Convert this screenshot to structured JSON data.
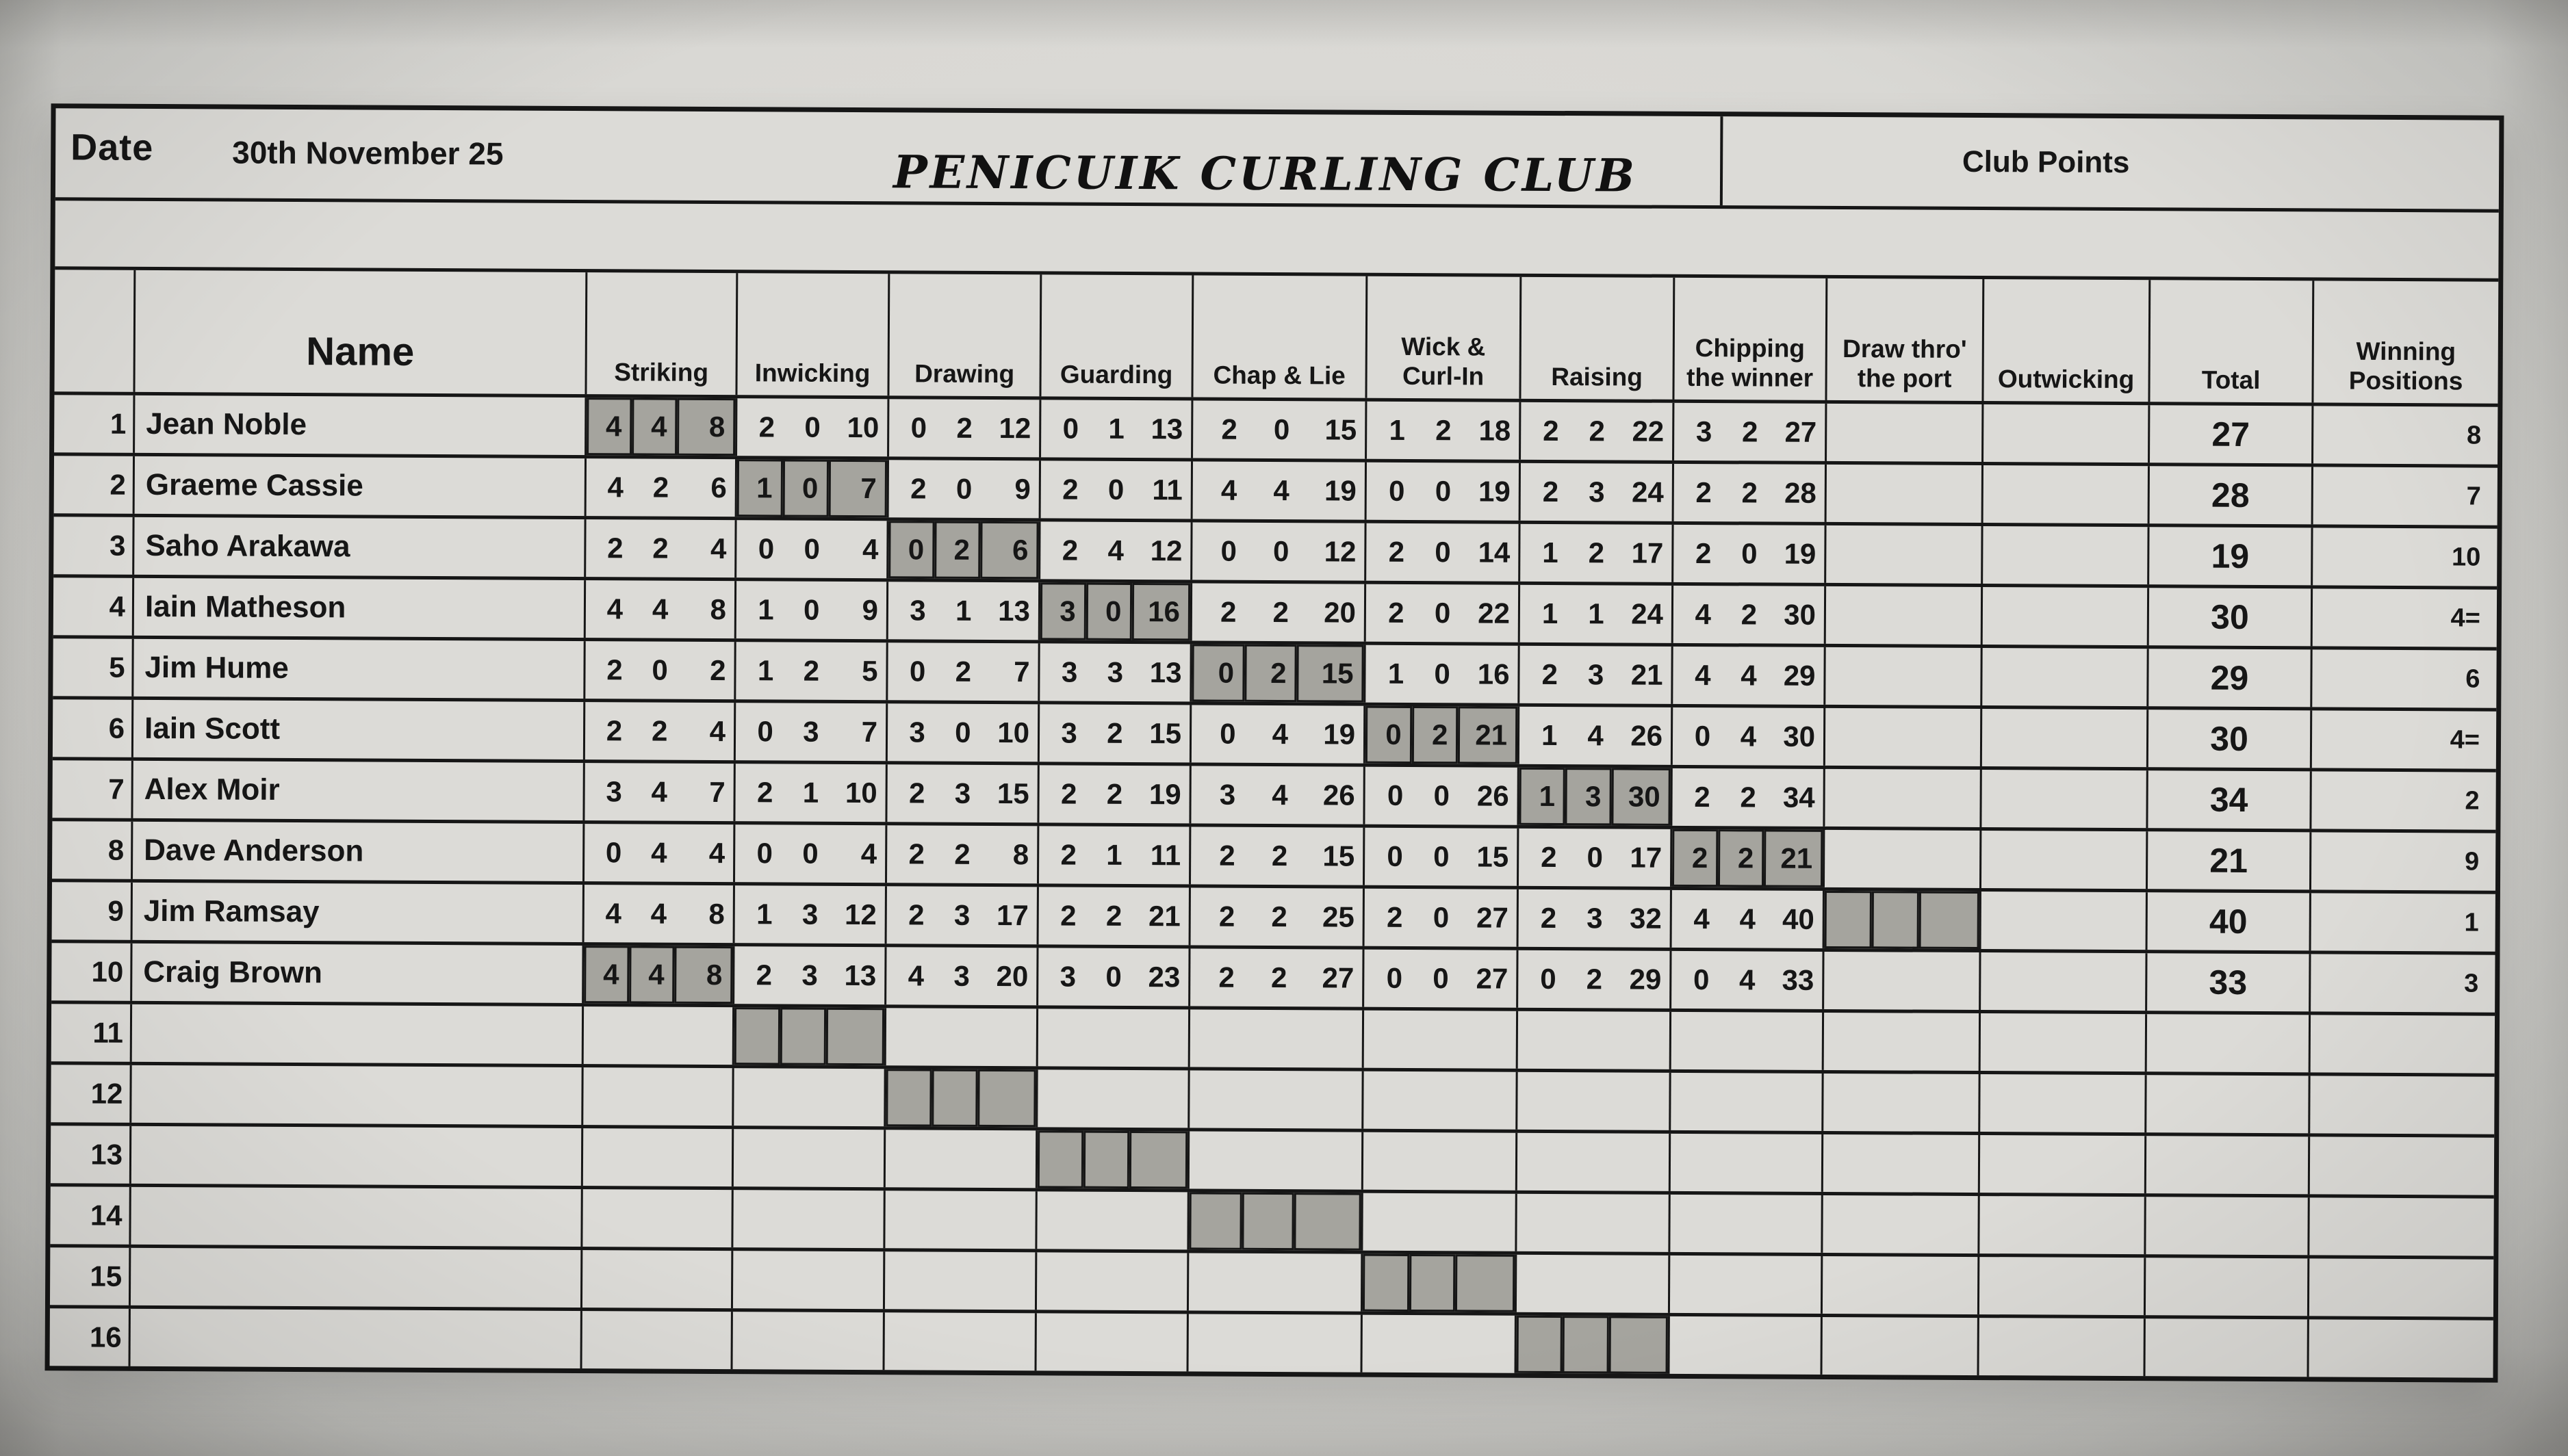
{
  "header": {
    "date_label": "Date",
    "date_value": "30th November 25",
    "title": "PENICUIK CURLING CLUB",
    "club_points": "Club Points"
  },
  "columns": {
    "name": "Name",
    "skills": [
      [
        "Striking"
      ],
      [
        "Inwicking"
      ],
      [
        "Drawing"
      ],
      [
        "Guarding"
      ],
      [
        "Chap & Lie"
      ],
      [
        "Wick &",
        "Curl-In"
      ],
      [
        "Raising"
      ],
      [
        "Chipping",
        "the winner"
      ],
      [
        "Draw thro'",
        "the port"
      ],
      [
        "Outwicking"
      ]
    ],
    "total": [
      "Total"
    ],
    "winning": [
      "Winning",
      "Positions"
    ]
  },
  "colors": {
    "paper": "#dcdbd7",
    "ink": "#161616",
    "shaded_cell": "#a5a49e",
    "photo_background": "#d9d8d4"
  },
  "rows": [
    {
      "num": "1",
      "name": "Jean Noble",
      "shaded_skill": 0,
      "total": "27",
      "position": "8",
      "scores": [
        [
          "4",
          "4",
          "8"
        ],
        [
          "2",
          "0",
          "10"
        ],
        [
          "0",
          "2",
          "12"
        ],
        [
          "0",
          "1",
          "13"
        ],
        [
          "2",
          "0",
          "15"
        ],
        [
          "1",
          "2",
          "18"
        ],
        [
          "2",
          "2",
          "22"
        ],
        [
          "3",
          "2",
          "27"
        ],
        [
          "",
          "",
          ""
        ],
        [
          "",
          "",
          ""
        ]
      ]
    },
    {
      "num": "2",
      "name": "Graeme Cassie",
      "shaded_skill": 1,
      "total": "28",
      "position": "7",
      "scores": [
        [
          "4",
          "2",
          "6"
        ],
        [
          "1",
          "0",
          "7"
        ],
        [
          "2",
          "0",
          "9"
        ],
        [
          "2",
          "0",
          "11"
        ],
        [
          "4",
          "4",
          "19"
        ],
        [
          "0",
          "0",
          "19"
        ],
        [
          "2",
          "3",
          "24"
        ],
        [
          "2",
          "2",
          "28"
        ],
        [
          "",
          "",
          ""
        ],
        [
          "",
          "",
          ""
        ]
      ]
    },
    {
      "num": "3",
      "name": "Saho Arakawa",
      "shaded_skill": 2,
      "total": "19",
      "position": "10",
      "scores": [
        [
          "2",
          "2",
          "4"
        ],
        [
          "0",
          "0",
          "4"
        ],
        [
          "0",
          "2",
          "6"
        ],
        [
          "2",
          "4",
          "12"
        ],
        [
          "0",
          "0",
          "12"
        ],
        [
          "2",
          "0",
          "14"
        ],
        [
          "1",
          "2",
          "17"
        ],
        [
          "2",
          "0",
          "19"
        ],
        [
          "",
          "",
          ""
        ],
        [
          "",
          "",
          ""
        ]
      ]
    },
    {
      "num": "4",
      "name": "Iain Matheson",
      "shaded_skill": 3,
      "total": "30",
      "position": "4=",
      "scores": [
        [
          "4",
          "4",
          "8"
        ],
        [
          "1",
          "0",
          "9"
        ],
        [
          "3",
          "1",
          "13"
        ],
        [
          "3",
          "0",
          "16"
        ],
        [
          "2",
          "2",
          "20"
        ],
        [
          "2",
          "0",
          "22"
        ],
        [
          "1",
          "1",
          "24"
        ],
        [
          "4",
          "2",
          "30"
        ],
        [
          "",
          "",
          ""
        ],
        [
          "",
          "",
          ""
        ]
      ]
    },
    {
      "num": "5",
      "name": "Jim Hume",
      "shaded_skill": 4,
      "total": "29",
      "position": "6",
      "scores": [
        [
          "2",
          "0",
          "2"
        ],
        [
          "1",
          "2",
          "5"
        ],
        [
          "0",
          "2",
          "7"
        ],
        [
          "3",
          "3",
          "13"
        ],
        [
          "0",
          "2",
          "15"
        ],
        [
          "1",
          "0",
          "16"
        ],
        [
          "2",
          "3",
          "21"
        ],
        [
          "4",
          "4",
          "29"
        ],
        [
          "",
          "",
          ""
        ],
        [
          "",
          "",
          ""
        ]
      ]
    },
    {
      "num": "6",
      "name": "Iain Scott",
      "shaded_skill": 5,
      "total": "30",
      "position": "4=",
      "scores": [
        [
          "2",
          "2",
          "4"
        ],
        [
          "0",
          "3",
          "7"
        ],
        [
          "3",
          "0",
          "10"
        ],
        [
          "3",
          "2",
          "15"
        ],
        [
          "0",
          "4",
          "19"
        ],
        [
          "0",
          "2",
          "21"
        ],
        [
          "1",
          "4",
          "26"
        ],
        [
          "0",
          "4",
          "30"
        ],
        [
          "",
          "",
          ""
        ],
        [
          "",
          "",
          ""
        ]
      ]
    },
    {
      "num": "7",
      "name": "Alex Moir",
      "shaded_skill": 6,
      "total": "34",
      "position": "2",
      "scores": [
        [
          "3",
          "4",
          "7"
        ],
        [
          "2",
          "1",
          "10"
        ],
        [
          "2",
          "3",
          "15"
        ],
        [
          "2",
          "2",
          "19"
        ],
        [
          "3",
          "4",
          "26"
        ],
        [
          "0",
          "0",
          "26"
        ],
        [
          "1",
          "3",
          "30"
        ],
        [
          "2",
          "2",
          "34"
        ],
        [
          "",
          "",
          ""
        ],
        [
          "",
          "",
          ""
        ]
      ]
    },
    {
      "num": "8",
      "name": "Dave Anderson",
      "shaded_skill": 7,
      "total": "21",
      "position": "9",
      "scores": [
        [
          "0",
          "4",
          "4"
        ],
        [
          "0",
          "0",
          "4"
        ],
        [
          "2",
          "2",
          "8"
        ],
        [
          "2",
          "1",
          "11"
        ],
        [
          "2",
          "2",
          "15"
        ],
        [
          "0",
          "0",
          "15"
        ],
        [
          "2",
          "0",
          "17"
        ],
        [
          "2",
          "2",
          "21"
        ],
        [
          "",
          "",
          ""
        ],
        [
          "",
          "",
          ""
        ]
      ]
    },
    {
      "num": "9",
      "name": "Jim Ramsay",
      "shaded_skill": 8,
      "total": "40",
      "position": "1",
      "scores": [
        [
          "4",
          "4",
          "8"
        ],
        [
          "1",
          "3",
          "12"
        ],
        [
          "2",
          "3",
          "17"
        ],
        [
          "2",
          "2",
          "21"
        ],
        [
          "2",
          "2",
          "25"
        ],
        [
          "2",
          "0",
          "27"
        ],
        [
          "2",
          "3",
          "32"
        ],
        [
          "4",
          "4",
          "40"
        ],
        [
          "",
          "",
          ""
        ],
        [
          "",
          "",
          ""
        ]
      ]
    },
    {
      "num": "10",
      "name": "Craig Brown",
      "shaded_skill": 0,
      "total": "33",
      "position": "3",
      "scores": [
        [
          "4",
          "4",
          "8"
        ],
        [
          "2",
          "3",
          "13"
        ],
        [
          "4",
          "3",
          "20"
        ],
        [
          "3",
          "0",
          "23"
        ],
        [
          "2",
          "2",
          "27"
        ],
        [
          "0",
          "0",
          "27"
        ],
        [
          "0",
          "2",
          "29"
        ],
        [
          "0",
          "4",
          "33"
        ],
        [
          "",
          "",
          ""
        ],
        [
          "",
          "",
          ""
        ]
      ]
    },
    {
      "num": "11",
      "name": "",
      "shaded_skill": 1,
      "total": "",
      "position": "",
      "scores": [
        [
          "",
          "",
          ""
        ],
        [
          "",
          "",
          ""
        ],
        [
          "",
          "",
          ""
        ],
        [
          "",
          "",
          ""
        ],
        [
          "",
          "",
          ""
        ],
        [
          "",
          "",
          ""
        ],
        [
          "",
          "",
          ""
        ],
        [
          "",
          "",
          ""
        ],
        [
          "",
          "",
          ""
        ],
        [
          "",
          "",
          ""
        ]
      ]
    },
    {
      "num": "12",
      "name": "",
      "shaded_skill": 2,
      "total": "",
      "position": "",
      "scores": [
        [
          "",
          "",
          ""
        ],
        [
          "",
          "",
          ""
        ],
        [
          "",
          "",
          ""
        ],
        [
          "",
          "",
          ""
        ],
        [
          "",
          "",
          ""
        ],
        [
          "",
          "",
          ""
        ],
        [
          "",
          "",
          ""
        ],
        [
          "",
          "",
          ""
        ],
        [
          "",
          "",
          ""
        ],
        [
          "",
          "",
          ""
        ]
      ]
    },
    {
      "num": "13",
      "name": "",
      "shaded_skill": 3,
      "total": "",
      "position": "",
      "scores": [
        [
          "",
          "",
          ""
        ],
        [
          "",
          "",
          ""
        ],
        [
          "",
          "",
          ""
        ],
        [
          "",
          "",
          ""
        ],
        [
          "",
          "",
          ""
        ],
        [
          "",
          "",
          ""
        ],
        [
          "",
          "",
          ""
        ],
        [
          "",
          "",
          ""
        ],
        [
          "",
          "",
          ""
        ],
        [
          "",
          "",
          ""
        ]
      ]
    },
    {
      "num": "14",
      "name": "",
      "shaded_skill": 4,
      "total": "",
      "position": "",
      "scores": [
        [
          "",
          "",
          ""
        ],
        [
          "",
          "",
          ""
        ],
        [
          "",
          "",
          ""
        ],
        [
          "",
          "",
          ""
        ],
        [
          "",
          "",
          ""
        ],
        [
          "",
          "",
          ""
        ],
        [
          "",
          "",
          ""
        ],
        [
          "",
          "",
          ""
        ],
        [
          "",
          "",
          ""
        ],
        [
          "",
          "",
          ""
        ]
      ]
    },
    {
      "num": "15",
      "name": "",
      "shaded_skill": 5,
      "total": "",
      "position": "",
      "scores": [
        [
          "",
          "",
          ""
        ],
        [
          "",
          "",
          ""
        ],
        [
          "",
          "",
          ""
        ],
        [
          "",
          "",
          ""
        ],
        [
          "",
          "",
          ""
        ],
        [
          "",
          "",
          ""
        ],
        [
          "",
          "",
          ""
        ],
        [
          "",
          "",
          ""
        ],
        [
          "",
          "",
          ""
        ],
        [
          "",
          "",
          ""
        ]
      ]
    },
    {
      "num": "16",
      "name": "",
      "shaded_skill": 6,
      "total": "",
      "position": "",
      "scores": [
        [
          "",
          "",
          ""
        ],
        [
          "",
          "",
          ""
        ],
        [
          "",
          "",
          ""
        ],
        [
          "",
          "",
          ""
        ],
        [
          "",
          "",
          ""
        ],
        [
          "",
          "",
          ""
        ],
        [
          "",
          "",
          ""
        ],
        [
          "",
          "",
          ""
        ],
        [
          "",
          "",
          ""
        ],
        [
          "",
          "",
          ""
        ]
      ]
    }
  ]
}
